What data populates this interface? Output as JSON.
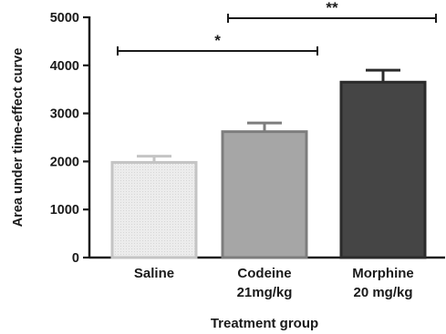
{
  "chart_data": {
    "type": "bar",
    "categories": [
      [
        "Saline"
      ],
      [
        "Codeine",
        "21mg/kg"
      ],
      [
        "Morphine",
        "20 mg/kg"
      ]
    ],
    "values": [
      1980,
      2620,
      3650
    ],
    "errors": [
      130,
      180,
      250
    ],
    "ylim": [
      0,
      5000
    ],
    "yticks": [
      "0",
      "1000",
      "2000",
      "3000",
      "4000",
      "5000"
    ],
    "xlabel": "Treatment group",
    "ylabel": "Area under time-effect curve",
    "bar_fill": [
      "#e9e9e9",
      "#a6a6a6",
      "#454545"
    ],
    "bar_stroke": [
      "#c4c4c4",
      "#7d7d7d",
      "#2b2b2b"
    ],
    "significance": [
      {
        "from": 0,
        "to": 1,
        "label": "*",
        "y": 4300
      },
      {
        "from": 1,
        "to": 2,
        "label": "**",
        "y": 4980
      }
    ]
  }
}
